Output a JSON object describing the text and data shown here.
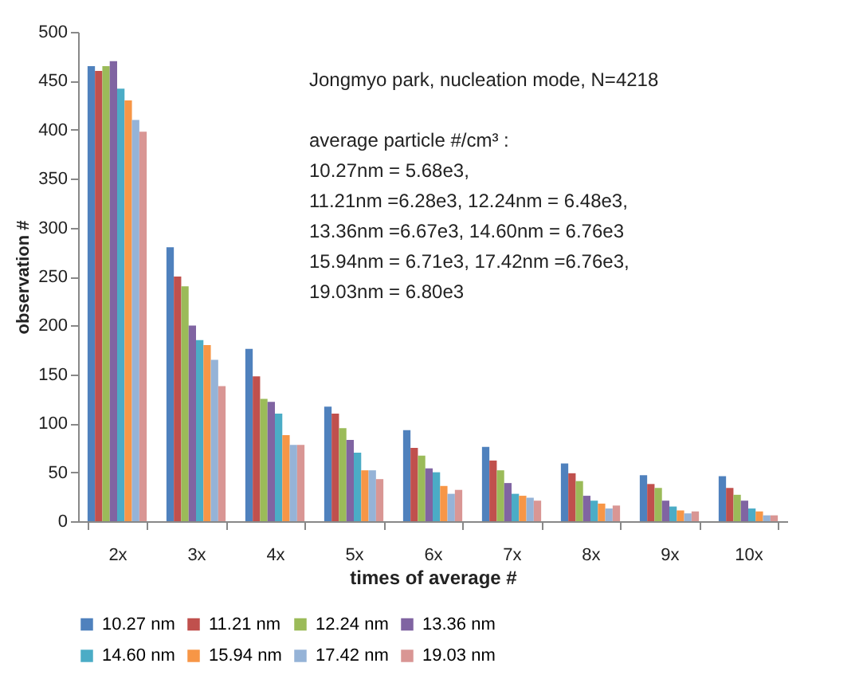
{
  "chart_data": {
    "type": "bar",
    "xlabel": "times of average #",
    "ylabel": "observation #",
    "categories": [
      "2x",
      "3x",
      "4x",
      "5x",
      "6x",
      "7x",
      "8x",
      "9x",
      "10x"
    ],
    "series": [
      {
        "name": "10.27 nm",
        "color": "#4f81bd",
        "values": [
          465,
          280,
          176,
          117,
          93,
          76,
          59,
          47,
          46
        ]
      },
      {
        "name": "11.21 nm",
        "color": "#c0504d",
        "values": [
          460,
          250,
          148,
          110,
          75,
          62,
          49,
          38,
          34
        ]
      },
      {
        "name": "12.24 nm",
        "color": "#9bbb59",
        "values": [
          465,
          240,
          125,
          95,
          67,
          52,
          41,
          34,
          27
        ]
      },
      {
        "name": "13.36 nm",
        "color": "#8064a2",
        "values": [
          470,
          200,
          122,
          83,
          54,
          39,
          26,
          21,
          21
        ]
      },
      {
        "name": "14.60 nm",
        "color": "#4bacc6",
        "values": [
          442,
          185,
          110,
          70,
          50,
          28,
          21,
          15,
          13
        ]
      },
      {
        "name": "15.94 nm",
        "color": "#f79646",
        "values": [
          430,
          180,
          88,
          52,
          36,
          26,
          18,
          11,
          10
        ]
      },
      {
        "name": "17.42 nm",
        "color": "#95b3d7",
        "values": [
          410,
          165,
          78,
          52,
          28,
          24,
          13,
          8,
          6
        ]
      },
      {
        "name": "19.03 nm",
        "color": "#d99694",
        "values": [
          398,
          138,
          78,
          43,
          32,
          21,
          16,
          10,
          6
        ]
      }
    ],
    "ylim": [
      0,
      500
    ],
    "yticks": [
      0,
      50,
      100,
      150,
      200,
      250,
      300,
      350,
      400,
      450,
      500
    ],
    "legend": "bottom",
    "annotations": [
      "Jongmyo park,  nucleation mode, N=4218",
      "average particle #/cm³  :",
      " 10.27nm = 5.68e3,",
      " 11.21nm =6.28e3,  12.24nm = 6.48e3,",
      " 13.36nm =6.67e3,  14.60nm = 6.76e3",
      " 15.94nm = 6.71e3, 17.42nm =6.76e3,",
      " 19.03nm = 6.80e3"
    ]
  }
}
